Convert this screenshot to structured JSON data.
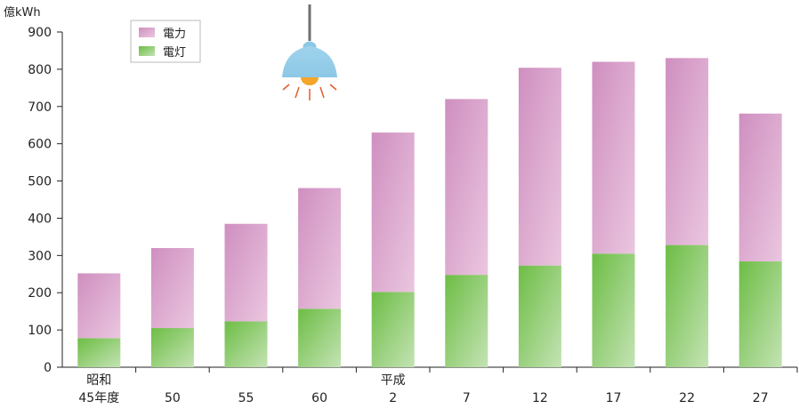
{
  "chart_data": {
    "type": "bar",
    "stacked": true,
    "unit": "億kWh",
    "ylim": [
      0,
      900
    ],
    "yticks": [
      0,
      100,
      200,
      300,
      400,
      500,
      600,
      700,
      800,
      900
    ],
    "categories": [
      {
        "era": "昭和",
        "year": "45年度"
      },
      {
        "era": "",
        "year": "50"
      },
      {
        "era": "",
        "year": "55"
      },
      {
        "era": "",
        "year": "60"
      },
      {
        "era": "平成",
        "year": "2"
      },
      {
        "era": "",
        "year": "7"
      },
      {
        "era": "",
        "year": "12"
      },
      {
        "era": "",
        "year": "17"
      },
      {
        "era": "",
        "year": "22"
      },
      {
        "era": "",
        "year": "27"
      }
    ],
    "series": [
      {
        "name": "電灯",
        "color": "#6dbd45",
        "values": [
          78,
          105,
          123,
          157,
          202,
          248,
          273,
          305,
          328,
          284
        ]
      },
      {
        "name": "電力",
        "color": "#c98bbd",
        "values": [
          174,
          215,
          262,
          324,
          428,
          472,
          531,
          515,
          502,
          397
        ]
      }
    ],
    "totals": [
      252,
      320,
      385,
      481,
      630,
      720,
      804,
      820,
      830,
      681
    ],
    "legend": {
      "position": "top-left",
      "items": [
        "電力",
        "電灯"
      ]
    },
    "grid": false
  },
  "decoration": {
    "icon": "ceiling-lamp-icon"
  }
}
